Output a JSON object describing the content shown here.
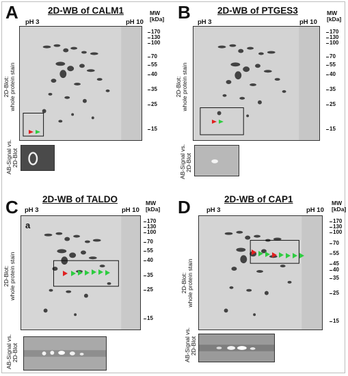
{
  "panels": [
    {
      "letter": "A",
      "title": "2D-WB of CALM1",
      "ph_low": "pH 3",
      "ph_high": "pH 10",
      "mw_label_line1": "MW",
      "mw_label_line2": "[kDa]",
      "markers": [
        "170",
        "130",
        "100",
        "70",
        "55",
        "40",
        "35",
        "25",
        "15"
      ],
      "side_label_line1": "2D-Blot:",
      "side_label_line2": "whole protein stain",
      "strip_label_line1": "AB-Signal vs.",
      "strip_label_line2": "2D-Blot",
      "arrows": {
        "red": 1,
        "green": 1
      }
    },
    {
      "letter": "B",
      "title": "2D-WB of PTGES3",
      "ph_low": "pH 3",
      "ph_high": "pH 10",
      "mw_label_line1": "MW",
      "mw_label_line2": "[kDa]",
      "markers": [
        "170",
        "130",
        "100",
        "70",
        "55",
        "40",
        "35",
        "25",
        "15"
      ],
      "side_label_line1": "2D-Blot:",
      "side_label_line2": "whole protein stain",
      "strip_label_line1": "AB-Signal vs.",
      "strip_label_line2": "2D-Blot",
      "arrows": {
        "red": 1,
        "green": 1
      }
    },
    {
      "letter": "C",
      "title": "2D-WB of TALDO",
      "sublabel": "a",
      "ph_low": "pH 3",
      "ph_high": "pH 10",
      "mw_label_line1": "MW",
      "mw_label_line2": "[kDa]",
      "markers": [
        "170",
        "130",
        "100",
        "70",
        "55",
        "40",
        "35",
        "25",
        "15"
      ],
      "side_label_line1": "2D-Blot:",
      "side_label_line2": "whole protein stain",
      "strip_label_line1": "AB-Signal vs.",
      "strip_label_line2": "2D-Blot",
      "arrows": {
        "red": 1,
        "green": 6
      }
    },
    {
      "letter": "D",
      "title": "2D-WB of CAP1",
      "ph_low": "pH 3",
      "ph_high": "pH 10",
      "mw_label_line1": "MW",
      "mw_label_line2": "[kDa]",
      "markers": [
        "170",
        "130",
        "100",
        "70",
        "55",
        "45",
        "40",
        "35",
        "25",
        "15"
      ],
      "side_label_line1": "2D-Blot:",
      "side_label_line2": "whole protein stain",
      "strip_label_line1": "AB-Signal vs.",
      "strip_label_line2": "2D-Blot",
      "arrows": {
        "red": 2,
        "green": 6
      }
    }
  ],
  "colors": {
    "red_arrow": "#e02020",
    "green_arrow": "#2ecc40"
  }
}
